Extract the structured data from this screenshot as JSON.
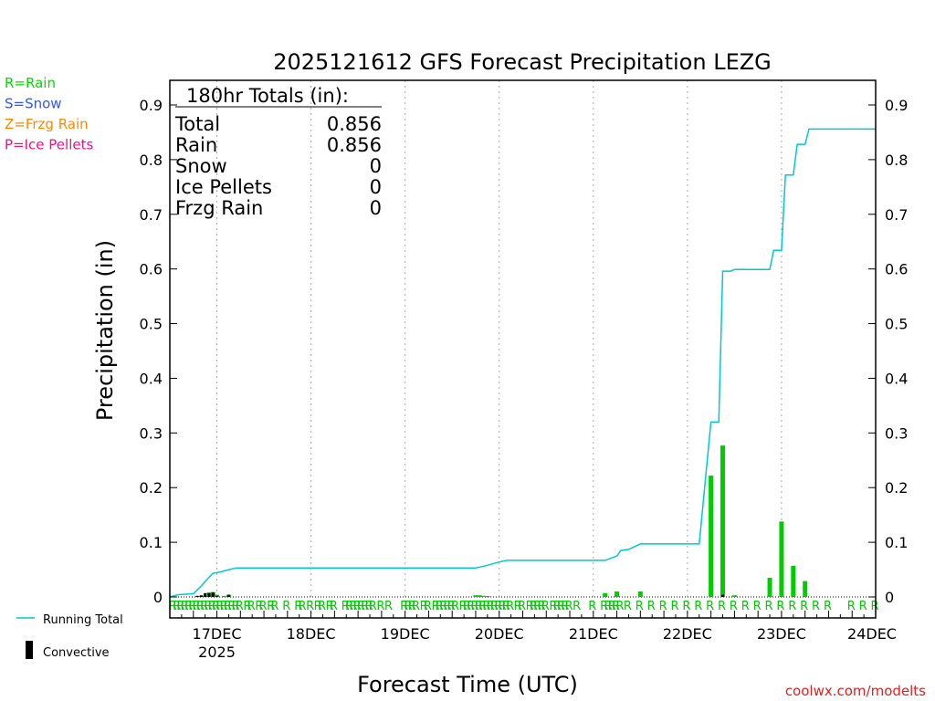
{
  "chart_data": {
    "type": "bar",
    "title": "2025121612 GFS Forecast Precipitation LEZG",
    "xlabel": "Forecast Time (UTC)",
    "ylabel": "Precipitation (in)",
    "ylim": [
      0,
      0.9
    ],
    "xlim_hours": [
      12,
      192
    ],
    "yticks": [
      "0",
      "0.1",
      "0.2",
      "0.3",
      "0.4",
      "0.5",
      "0.6",
      "0.7",
      "0.8",
      "0.9"
    ],
    "xticks": [
      {
        "label": "17DEC",
        "sub": "2025",
        "hour": 24
      },
      {
        "label": "18DEC",
        "sub": "",
        "hour": 48
      },
      {
        "label": "19DEC",
        "sub": "",
        "hour": 72
      },
      {
        "label": "20DEC",
        "sub": "",
        "hour": 96
      },
      {
        "label": "21DEC",
        "sub": "",
        "hour": 120
      },
      {
        "label": "22DEC",
        "sub": "",
        "hour": 144
      },
      {
        "label": "23DEC",
        "sub": "",
        "hour": 168
      },
      {
        "label": "24DEC",
        "sub": "",
        "hour": 192
      }
    ],
    "legend_types": [
      {
        "text": "R=Rain",
        "color": "#00dd00"
      },
      {
        "text": "S=Snow",
        "color": "#3355ff"
      },
      {
        "text": "Z=Frzg Rain",
        "color": "#ff8800"
      },
      {
        "text": "P=Ice Pellets",
        "color": "#ee1188"
      }
    ],
    "legend_series": [
      {
        "text": "Running Total",
        "color": "#00c8d2",
        "kind": "line"
      },
      {
        "text": "Convective",
        "color": "#000000",
        "kind": "bar"
      }
    ],
    "totals": {
      "heading": "180hr Totals (in):",
      "rows": [
        {
          "label": "Total",
          "value": "0.856"
        },
        {
          "label": "Rain",
          "value": "0.856"
        },
        {
          "label": "Snow",
          "value": "0"
        },
        {
          "label": "Ice Pellets",
          "value": "0"
        },
        {
          "label": "Frzg Rain",
          "value": "0"
        }
      ]
    },
    "precip_bars": [
      {
        "hour": 19,
        "value": 0.001
      },
      {
        "hour": 20,
        "value": 0.002
      },
      {
        "hour": 21,
        "value": 0.002
      },
      {
        "hour": 22,
        "value": 0.008
      },
      {
        "hour": 23,
        "value": 0.009
      },
      {
        "hour": 24,
        "value": 0.004
      },
      {
        "hour": 26,
        "value": 0.001
      },
      {
        "hour": 27,
        "value": 0.004
      },
      {
        "hour": 90,
        "value": 0.003
      },
      {
        "hour": 91,
        "value": 0.003
      },
      {
        "hour": 92,
        "value": 0.002
      },
      {
        "hour": 93,
        "value": 0.001
      },
      {
        "hour": 123,
        "value": 0.007
      },
      {
        "hour": 126,
        "value": 0.01
      },
      {
        "hour": 132,
        "value": 0.01
      },
      {
        "hour": 150,
        "value": 0.222
      },
      {
        "hour": 153,
        "value": 0.277
      },
      {
        "hour": 156,
        "value": 0.003
      },
      {
        "hour": 165,
        "value": 0.035
      },
      {
        "hour": 168,
        "value": 0.138
      },
      {
        "hour": 171,
        "value": 0.057
      },
      {
        "hour": 174,
        "value": 0.029
      }
    ],
    "convective_bars": [
      {
        "hour": 19,
        "value": 0.002
      },
      {
        "hour": 20,
        "value": 0.003
      },
      {
        "hour": 21,
        "value": 0.007
      },
      {
        "hour": 22,
        "value": 0.007
      },
      {
        "hour": 23,
        "value": 0.008
      },
      {
        "hour": 24,
        "value": 0.002
      },
      {
        "hour": 27,
        "value": 0.004
      },
      {
        "hour": 153,
        "value": 0.004
      }
    ],
    "running_total": [
      {
        "hour": 12,
        "value": 0
      },
      {
        "hour": 14,
        "value": 0.004
      },
      {
        "hour": 18,
        "value": 0.006
      },
      {
        "hour": 20,
        "value": 0.02
      },
      {
        "hour": 22,
        "value": 0.036
      },
      {
        "hour": 23,
        "value": 0.043
      },
      {
        "hour": 25,
        "value": 0.046
      },
      {
        "hour": 27,
        "value": 0.05
      },
      {
        "hour": 29,
        "value": 0.053
      },
      {
        "hour": 60,
        "value": 0.053
      },
      {
        "hour": 84,
        "value": 0.053
      },
      {
        "hour": 90,
        "value": 0.053
      },
      {
        "hour": 93,
        "value": 0.058
      },
      {
        "hour": 96,
        "value": 0.064
      },
      {
        "hour": 98,
        "value": 0.067
      },
      {
        "hour": 120,
        "value": 0.067
      },
      {
        "hour": 123,
        "value": 0.067
      },
      {
        "hour": 126,
        "value": 0.075
      },
      {
        "hour": 127,
        "value": 0.085
      },
      {
        "hour": 129,
        "value": 0.087
      },
      {
        "hour": 132,
        "value": 0.097
      },
      {
        "hour": 147,
        "value": 0.097
      },
      {
        "hour": 150,
        "value": 0.32
      },
      {
        "hour": 152,
        "value": 0.32
      },
      {
        "hour": 153,
        "value": 0.596
      },
      {
        "hour": 155,
        "value": 0.596
      },
      {
        "hour": 156,
        "value": 0.599
      },
      {
        "hour": 165,
        "value": 0.599
      },
      {
        "hour": 166,
        "value": 0.634
      },
      {
        "hour": 168,
        "value": 0.634
      },
      {
        "hour": 169,
        "value": 0.772
      },
      {
        "hour": 171,
        "value": 0.772
      },
      {
        "hour": 172,
        "value": 0.828
      },
      {
        "hour": 174,
        "value": 0.828
      },
      {
        "hour": 175,
        "value": 0.856
      },
      {
        "hour": 192,
        "value": 0.856
      }
    ],
    "type_markers": {
      "symbol": "R",
      "hours": [
        13,
        14,
        15,
        16,
        17,
        18,
        19,
        20,
        21,
        22,
        23,
        24,
        25,
        26,
        27,
        28,
        29,
        30,
        32,
        33,
        35,
        36,
        38,
        39,
        42,
        45,
        46,
        48,
        50,
        51,
        53,
        54,
        57,
        58,
        59,
        60,
        61,
        62,
        63,
        64,
        66,
        68,
        72,
        73,
        74,
        75,
        77,
        78,
        80,
        81,
        82,
        83,
        84,
        85,
        87,
        88,
        89,
        90,
        91,
        92,
        93,
        94,
        95,
        96,
        97,
        98,
        99,
        101,
        102,
        104,
        105,
        106,
        107,
        108,
        110,
        111,
        112,
        113,
        114,
        116,
        120,
        123,
        124,
        125,
        126,
        127,
        129,
        132,
        135,
        138,
        141,
        144,
        147,
        150,
        153,
        156,
        159,
        162,
        165,
        168,
        171,
        174,
        177,
        180,
        186,
        189,
        192
      ]
    },
    "credit": "coolwx.com/modelts"
  }
}
